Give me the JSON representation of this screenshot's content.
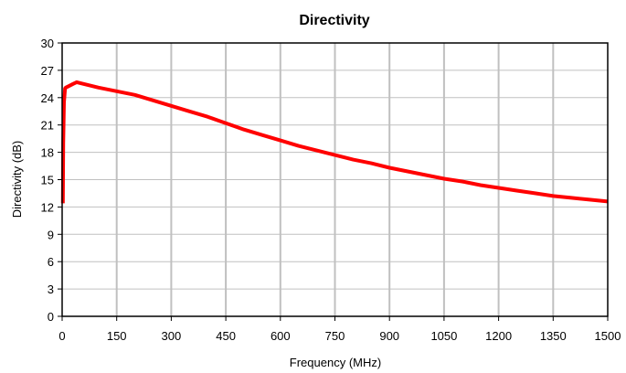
{
  "chart_data": {
    "type": "line",
    "title": "Directivity",
    "xlabel": "Frequency (MHz)",
    "ylabel": "Directivity (dB)",
    "xlim": [
      0,
      1500
    ],
    "ylim": [
      0,
      30
    ],
    "xticks": [
      0,
      150,
      300,
      450,
      600,
      750,
      900,
      1050,
      1200,
      1350,
      1500
    ],
    "yticks": [
      0,
      3,
      6,
      9,
      12,
      15,
      18,
      21,
      24,
      27,
      30
    ],
    "grid": {
      "vertical": true,
      "horizontal": true
    },
    "legend": "none",
    "series": [
      {
        "color": "#ff0000",
        "x": [
          2,
          3,
          5,
          8,
          10,
          20,
          30,
          40,
          50,
          100,
          150,
          200,
          250,
          300,
          350,
          400,
          450,
          500,
          550,
          600,
          650,
          700,
          750,
          800,
          850,
          900,
          950,
          1000,
          1050,
          1100,
          1150,
          1200,
          1250,
          1300,
          1350,
          1400,
          1450,
          1500
        ],
        "y": [
          12.4,
          19.0,
          23.5,
          25.0,
          25.1,
          25.3,
          25.5,
          25.7,
          25.6,
          25.1,
          24.7,
          24.3,
          23.7,
          23.1,
          22.5,
          21.9,
          21.2,
          20.5,
          19.9,
          19.3,
          18.7,
          18.2,
          17.7,
          17.2,
          16.8,
          16.3,
          15.9,
          15.5,
          15.1,
          14.8,
          14.4,
          14.1,
          13.8,
          13.5,
          13.2,
          13.0,
          12.8,
          12.6
        ]
      }
    ]
  }
}
